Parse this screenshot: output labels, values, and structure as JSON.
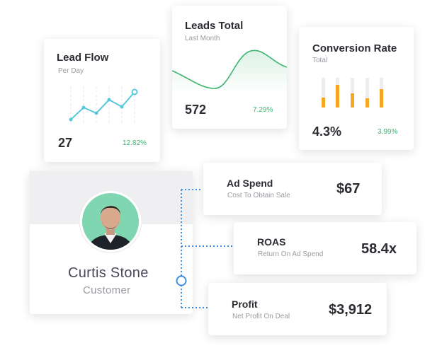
{
  "lead_flow": {
    "title": "Lead Flow",
    "subtitle": "Per Day",
    "value": "27",
    "change": "12.82%"
  },
  "leads_total": {
    "title": "Leads Total",
    "subtitle": "Last Month",
    "value": "572",
    "change": "7.29%"
  },
  "conversion": {
    "title": "Conversion Rate",
    "subtitle": "Total",
    "value": "4.3%",
    "change": "3.99%"
  },
  "profile": {
    "name": "Curtis Stone",
    "role": "Customer"
  },
  "metrics": [
    {
      "title": "Ad Spend",
      "subtitle": "Cost To Obtain Sale",
      "value": "$67"
    },
    {
      "title": "ROAS",
      "subtitle": "Return On Ad Spend",
      "value": "58.4x"
    },
    {
      "title": "Profit",
      "subtitle": "Net Profit On Deal",
      "value": "$3,912"
    }
  ],
  "colors": {
    "line_teal": "#5ac8dc",
    "line_green": "#3cb371",
    "bar_orange": "#f5a623",
    "bar_track": "#e9e9ee",
    "connector_blue": "#3d8fe0",
    "positive": "#3cb371",
    "avatar_bg": "#7fd6b0"
  },
  "icons": [
    "avatar"
  ]
}
